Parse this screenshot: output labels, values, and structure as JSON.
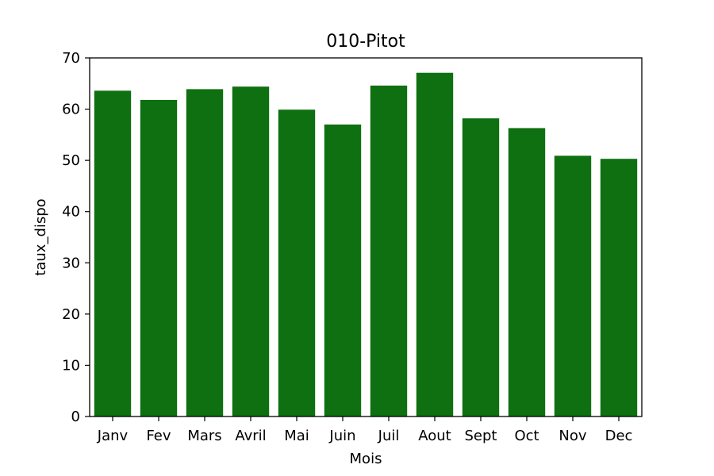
{
  "chart_data": {
    "type": "bar",
    "title": "010-Pitot",
    "xlabel": "Mois",
    "ylabel": "taux_dispo",
    "categories": [
      "Janv",
      "Fev",
      "Mars",
      "Avril",
      "Mai",
      "Juin",
      "Juil",
      "Aout",
      "Sept",
      "Oct",
      "Nov",
      "Dec"
    ],
    "values": [
      63.6,
      61.8,
      63.9,
      64.4,
      59.9,
      57.0,
      64.6,
      67.1,
      58.2,
      56.3,
      50.9,
      50.3
    ],
    "ylim": [
      0,
      70
    ],
    "yticks": [
      "0",
      "10",
      "20",
      "30",
      "40",
      "50",
      "60",
      "70"
    ],
    "bar_color": "#0e7010",
    "grid": false,
    "legend": "none"
  }
}
